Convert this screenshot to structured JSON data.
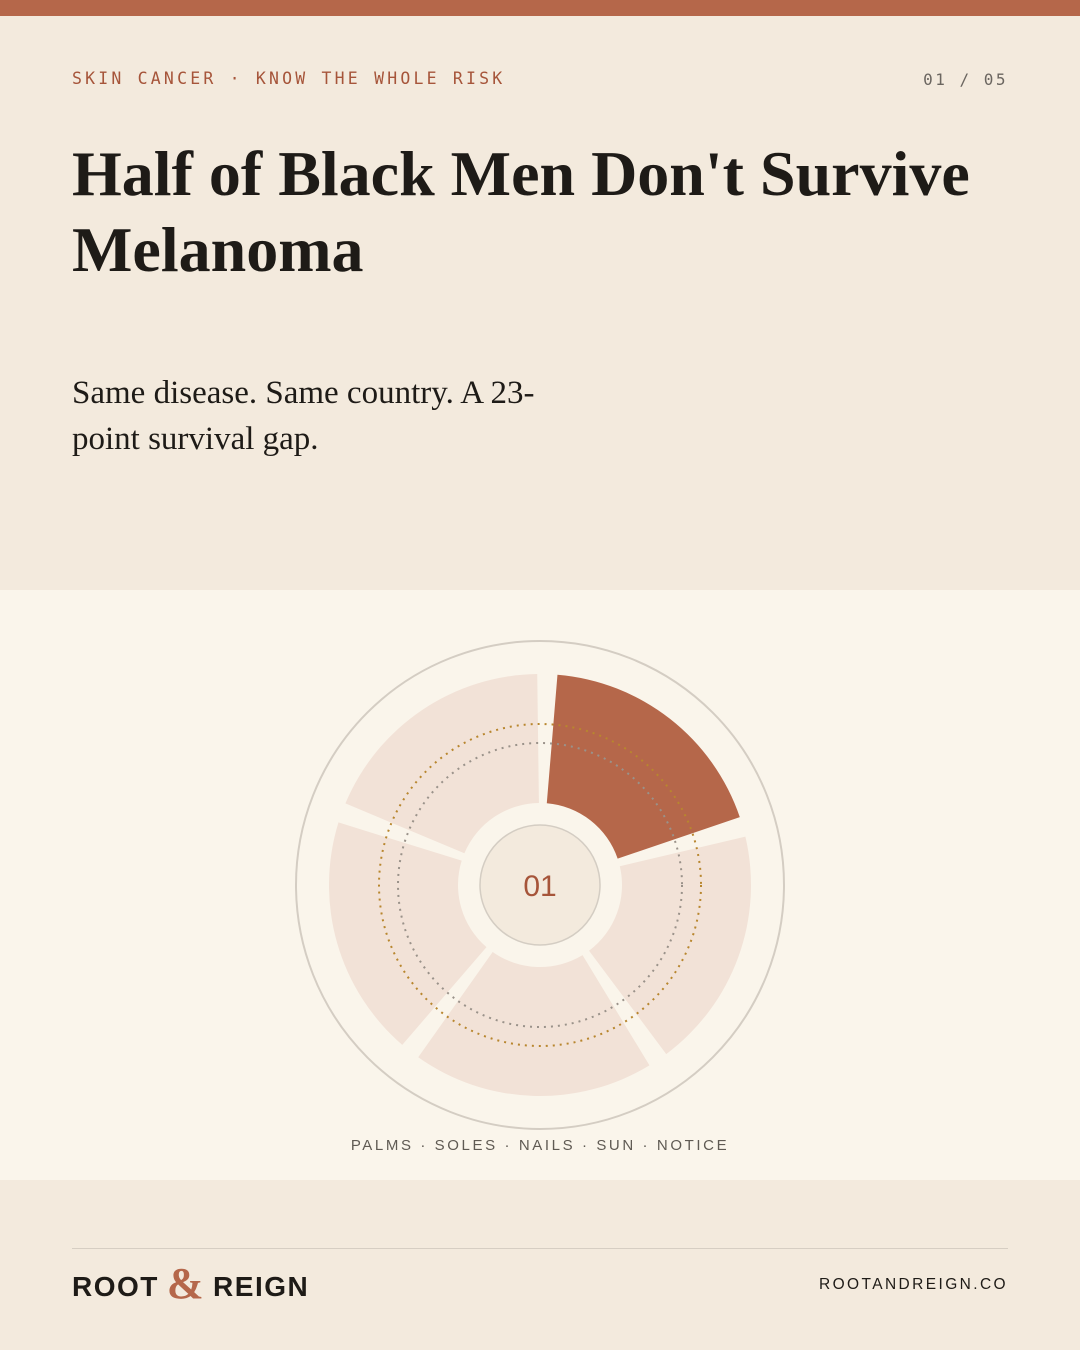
{
  "header": {
    "kicker": "SKIN CANCER · KNOW THE WHOLE RISK",
    "page_counter": "01 / 05"
  },
  "headline": "Half of Black Men Don't Survive Melanoma",
  "subhead": "Same disease. Same country. A 23-point survival gap.",
  "wheel": {
    "center_label": "01",
    "segment_count": 5,
    "active_segment": 1,
    "caption": "PALMS · SOLES · NAILS · SUN · NOTICE"
  },
  "footer": {
    "brand_left": "ROOT",
    "brand_amp": "&",
    "brand_right": "REIGN",
    "url": "ROOTANDREIGN.CO"
  },
  "colors": {
    "accent": "#b5674a",
    "segment_inactive": "#f2e2d7",
    "panel_bg": "#faf5eb",
    "page_bg": "#f3eadd",
    "dotted_ring": "#b8862e"
  }
}
